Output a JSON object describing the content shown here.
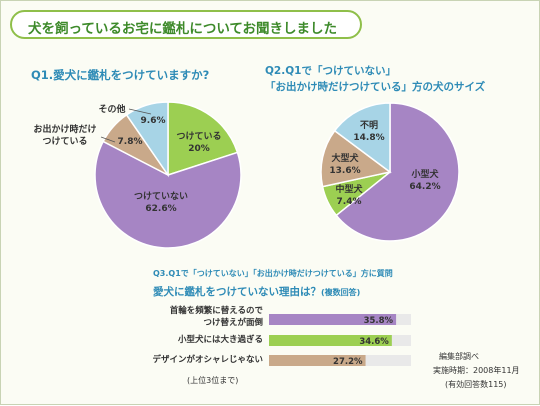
{
  "title": "犬を飼っているお宅に鑑札についてお聞きしました",
  "q1": {
    "title": "Q1.愛犬に鑑札をつけていますか?"
  },
  "q2": {
    "title_line1": "Q2.Q1で「つけていない」",
    "title_line2": "「お出かけ時だけつけている」方の犬のサイズ"
  },
  "q3": {
    "subtitle": "Q3.Q1で「つけていない」「お出かけ時だけつけている」方に質問",
    "title": "愛犬に鑑札をつけていない理由は？",
    "title_note": "(複数回答)"
  },
  "notes": {
    "top3": "(上位3位まで)",
    "source": "編集部調べ",
    "period": "実施時期：2008年11月",
    "responses": "(有効回答数115)"
  },
  "chart_data": [
    {
      "type": "pie",
      "title": "Q1.愛犬に鑑札をつけていますか?",
      "labels": [
        "つけている",
        "つけていない",
        "お出かけ時だけつけている",
        "その他"
      ],
      "values": [
        20.0,
        62.6,
        7.8,
        9.6
      ],
      "value_labels": [
        "20%",
        "62.6%",
        "7.8%",
        "9.6%"
      ],
      "colors": [
        "#9ccf52",
        "#a685c4",
        "#c9a98a",
        "#a7d4e6"
      ],
      "start": "top, clockwise"
    },
    {
      "type": "pie",
      "title": "Q2.Q1で「つけていない」「お出かけ時だけつけている」方の犬のサイズ",
      "labels": [
        "小型犬",
        "中型犬",
        "大型犬",
        "不明"
      ],
      "values": [
        64.2,
        7.4,
        13.6,
        14.8
      ],
      "value_labels": [
        "64.2%",
        "7.4%",
        "13.6%",
        "14.8%"
      ],
      "colors": [
        "#a685c4",
        "#9ccf52",
        "#c9a98a",
        "#a7d4e6"
      ],
      "start": "top, clockwise"
    },
    {
      "type": "bar",
      "orientation": "horizontal",
      "title": "愛犬に鑑札をつけていない理由は？(複数回答)",
      "categories": [
        "首輪を頻繁に替えるので\nつけ替えが面倒",
        "小型犬には大き過ぎる",
        "デザインがオシャレじゃない"
      ],
      "values": [
        35.8,
        34.6,
        27.2
      ],
      "value_labels": [
        "35.8%",
        "34.6%",
        "27.2%"
      ],
      "colors": [
        "#a685c4",
        "#9ccf52",
        "#c9a98a"
      ]
    }
  ]
}
